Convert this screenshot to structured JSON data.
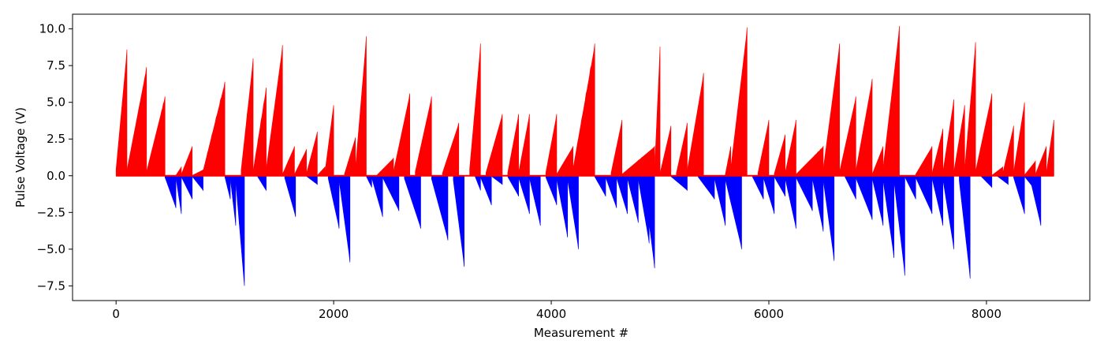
{
  "chart_data": {
    "type": "bar",
    "title": "",
    "xlabel": "Measurement #",
    "ylabel": "Pulse Voltage (V)",
    "xlim": [
      -400,
      8950
    ],
    "ylim": [
      -8.5,
      11.0
    ],
    "xticks": [
      0,
      2000,
      4000,
      6000,
      8000
    ],
    "yticks": [
      -7.5,
      -5.0,
      -2.5,
      0.0,
      2.5,
      5.0,
      7.5,
      10.0
    ],
    "ytick_labels": [
      "−7.5",
      "−5.0",
      "−2.5",
      "0.0",
      "2.5",
      "5.0",
      "7.5",
      "10.0"
    ],
    "grid": false,
    "legend": "none",
    "colors": {
      "positive": "#ff0000",
      "negative": "#0000ff"
    },
    "positive_ramps": [
      [
        0,
        100,
        8.6
      ],
      [
        100,
        280,
        7.4
      ],
      [
        280,
        450,
        5.4
      ],
      [
        550,
        600,
        0.6
      ],
      [
        600,
        700,
        2.0
      ],
      [
        700,
        800,
        0.4
      ],
      [
        800,
        1000,
        6.4
      ],
      [
        1150,
        1260,
        8.0
      ],
      [
        1260,
        1380,
        6.0
      ],
      [
        1380,
        1530,
        8.9
      ],
      [
        1530,
        1640,
        2.0
      ],
      [
        1640,
        1750,
        1.8
      ],
      [
        1750,
        1850,
        3.0
      ],
      [
        1850,
        1920,
        0.6
      ],
      [
        1920,
        2000,
        4.8
      ],
      [
        2100,
        2200,
        2.6
      ],
      [
        2200,
        2300,
        9.5
      ],
      [
        2400,
        2550,
        1.2
      ],
      [
        2550,
        2700,
        5.6
      ],
      [
        2750,
        2900,
        5.4
      ],
      [
        3000,
        3150,
        3.6
      ],
      [
        3250,
        3350,
        9.0
      ],
      [
        3400,
        3550,
        4.2
      ],
      [
        3600,
        3700,
        4.2
      ],
      [
        3700,
        3800,
        4.2
      ],
      [
        3950,
        4050,
        4.2
      ],
      [
        4050,
        4200,
        2.0
      ],
      [
        4200,
        4400,
        9.0
      ],
      [
        4550,
        4650,
        3.8
      ],
      [
        4650,
        4950,
        2.0
      ],
      [
        4950,
        5000,
        8.8
      ],
      [
        5000,
        5100,
        3.4
      ],
      [
        5150,
        5250,
        3.6
      ],
      [
        5250,
        5400,
        7.0
      ],
      [
        5600,
        5650,
        2.0
      ],
      [
        5650,
        5800,
        10.1
      ],
      [
        5900,
        6000,
        3.8
      ],
      [
        6050,
        6150,
        2.8
      ],
      [
        6150,
        6250,
        3.8
      ],
      [
        6250,
        6500,
        2.0
      ],
      [
        6500,
        6650,
        9.0
      ],
      [
        6650,
        6800,
        5.4
      ],
      [
        6800,
        6950,
        6.6
      ],
      [
        6950,
        7050,
        2.0
      ],
      [
        7050,
        7200,
        10.2
      ],
      [
        7350,
        7500,
        2.0
      ],
      [
        7500,
        7600,
        3.2
      ],
      [
        7600,
        7700,
        5.2
      ],
      [
        7700,
        7800,
        4.8
      ],
      [
        7800,
        7900,
        9.1
      ],
      [
        7900,
        8050,
        5.6
      ],
      [
        8050,
        8150,
        0.6
      ],
      [
        8150,
        8250,
        3.4
      ],
      [
        8250,
        8350,
        5.0
      ],
      [
        8350,
        8450,
        1.0
      ],
      [
        8450,
        8550,
        2.0
      ],
      [
        8550,
        8620,
        3.8
      ]
    ],
    "negative_ramps": [
      [
        450,
        550,
        -2.2
      ],
      [
        550,
        600,
        -2.6
      ],
      [
        600,
        700,
        -1.6
      ],
      [
        700,
        800,
        -1.0
      ],
      [
        1000,
        1050,
        -1.6
      ],
      [
        1050,
        1100,
        -3.4
      ],
      [
        1100,
        1180,
        -7.5
      ],
      [
        1300,
        1380,
        -1.0
      ],
      [
        1550,
        1650,
        -2.8
      ],
      [
        1750,
        1850,
        -0.6
      ],
      [
        1950,
        2050,
        -3.6
      ],
      [
        2050,
        2150,
        -5.9
      ],
      [
        2300,
        2350,
        -0.8
      ],
      [
        2350,
        2450,
        -2.8
      ],
      [
        2450,
        2600,
        -2.4
      ],
      [
        2650,
        2800,
        -3.6
      ],
      [
        2900,
        3050,
        -4.4
      ],
      [
        3100,
        3200,
        -6.2
      ],
      [
        3300,
        3350,
        -1.0
      ],
      [
        3350,
        3450,
        -2.0
      ],
      [
        3450,
        3550,
        -0.6
      ],
      [
        3600,
        3700,
        -1.4
      ],
      [
        3700,
        3800,
        -2.6
      ],
      [
        3800,
        3900,
        -3.4
      ],
      [
        3950,
        4050,
        -2.0
      ],
      [
        4050,
        4150,
        -4.2
      ],
      [
        4150,
        4250,
        -5.0
      ],
      [
        4400,
        4500,
        -1.4
      ],
      [
        4500,
        4600,
        -2.2
      ],
      [
        4600,
        4700,
        -2.6
      ],
      [
        4700,
        4800,
        -3.2
      ],
      [
        4800,
        4900,
        -4.6
      ],
      [
        4850,
        4950,
        -6.3
      ],
      [
        5100,
        5250,
        -1.0
      ],
      [
        5350,
        5500,
        -1.6
      ],
      [
        5500,
        5600,
        -3.4
      ],
      [
        5600,
        5750,
        -5.0
      ],
      [
        5850,
        5950,
        -1.6
      ],
      [
        5950,
        6050,
        -2.6
      ],
      [
        6050,
        6150,
        -1.4
      ],
      [
        6150,
        6250,
        -3.6
      ],
      [
        6250,
        6400,
        -2.4
      ],
      [
        6400,
        6500,
        -3.8
      ],
      [
        6500,
        6600,
        -5.8
      ],
      [
        6700,
        6800,
        -1.6
      ],
      [
        6800,
        6950,
        -3.0
      ],
      [
        6950,
        7050,
        -3.4
      ],
      [
        7050,
        7150,
        -5.6
      ],
      [
        7150,
        7250,
        -6.8
      ],
      [
        7250,
        7350,
        -1.6
      ],
      [
        7350,
        7500,
        -2.6
      ],
      [
        7500,
        7600,
        -3.4
      ],
      [
        7600,
        7700,
        -5.0
      ],
      [
        7750,
        7850,
        -7.0
      ],
      [
        7950,
        8050,
        -0.8
      ],
      [
        8100,
        8200,
        -0.6
      ],
      [
        8250,
        8350,
        -2.6
      ],
      [
        8350,
        8450,
        -1.0
      ],
      [
        8400,
        8500,
        -3.4
      ]
    ]
  }
}
